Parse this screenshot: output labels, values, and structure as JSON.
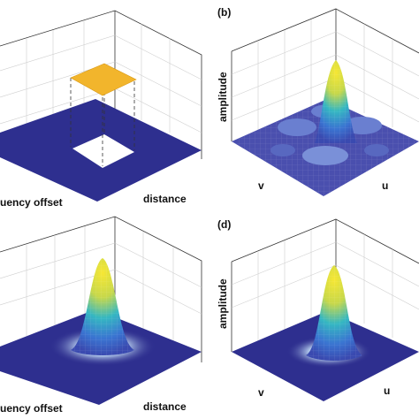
{
  "panels": {
    "a": {
      "ylabel": "",
      "xlabel_left": "uency offset",
      "xlabel_right": "distance"
    },
    "b": {
      "letter": "(b)",
      "ylabel": "amplitude",
      "axis_v": "v",
      "axis_u": "u"
    },
    "c": {
      "ylabel": "",
      "xlabel_left": "uency offset",
      "xlabel_right": "distance"
    },
    "d": {
      "letter": "(d)",
      "ylabel": "amplitude",
      "axis_v": "v",
      "axis_u": "u"
    }
  },
  "colors": {
    "floor": "#2e2f8f",
    "floor_light": "#3f44a6",
    "plateau": "#f2b52c",
    "peak": "#f5e629",
    "mid": "#2bb4c7",
    "low": "#3b6fd6"
  }
}
